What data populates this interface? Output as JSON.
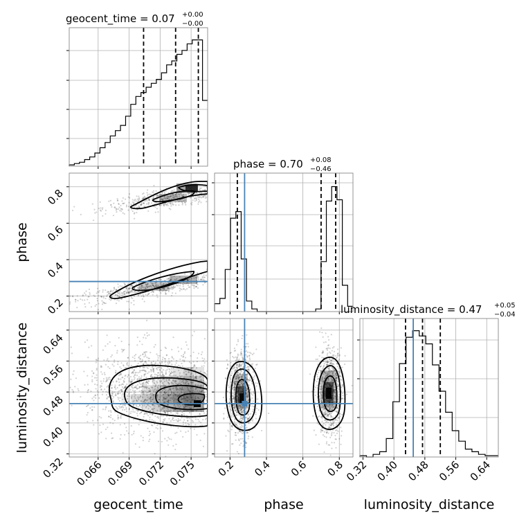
{
  "chart_data": {
    "type": "corner",
    "parameters": [
      "geocent_time",
      "phase",
      "luminosity_distance"
    ],
    "titles": {
      "geocent_time": {
        "name": "geocent_time",
        "median": "0.07",
        "plus": "+0.00",
        "minus": "−0.00"
      },
      "phase": {
        "name": "phase",
        "median": "0.70",
        "plus": "+0.08",
        "minus": "−0.46"
      },
      "luminosity_distance": {
        "name": "luminosity_distance",
        "median": "0.47",
        "plus": "+0.05",
        "minus": "−0.04"
      }
    },
    "axis_labels": {
      "geocent_time": "geocent_time",
      "phase": "phase",
      "luminosity_distance": "luminosity_distance"
    },
    "ranges": {
      "geocent_time": [
        0.0632,
        0.0766
      ],
      "phase": [
        0.115,
        0.875
      ],
      "luminosity_distance": [
        0.312,
        0.67
      ]
    },
    "ticks": {
      "geocent_time": [
        "0.066",
        "0.069",
        "0.072",
        "0.075"
      ],
      "phase_y": [
        "0.2",
        "0.4",
        "0.6",
        "0.8"
      ],
      "phase_x": [
        "0.2",
        "0.4",
        "0.6",
        "0.8"
      ],
      "luminosity_distance": [
        "0.32",
        "0.40",
        "0.48",
        "0.56",
        "0.64"
      ]
    },
    "truth_color": "#4682b4",
    "truths": {
      "phase": 0.28,
      "luminosity_distance": 0.45
    },
    "quantiles": {
      "geocent_time": [
        0.0704,
        0.0735,
        0.0757
      ],
      "phase": [
        0.24,
        0.7,
        0.78
      ],
      "luminosity_distance": [
        0.43,
        0.474,
        0.52
      ]
    },
    "hist_geocent_time": [
      0.01,
      0.02,
      0.03,
      0.05,
      0.07,
      0.1,
      0.14,
      0.18,
      0.23,
      0.27,
      0.31,
      0.38,
      0.47,
      0.53,
      0.56,
      0.6,
      0.63,
      0.66,
      0.71,
      0.77,
      0.8,
      0.85,
      0.88,
      0.93,
      0.96,
      0.96,
      0.5
    ],
    "hist_phase": [
      0.06,
      0.1,
      0.32,
      0.71,
      0.76,
      0.4,
      0.08,
      0.02,
      0,
      0,
      0,
      0,
      0,
      0,
      0,
      0,
      0,
      0,
      0,
      0.02,
      0.38,
      0.84,
      0.95,
      0.85,
      0.2,
      0.04
    ],
    "hist_luminosity_distance": [
      0.01,
      0,
      0.02,
      0.04,
      0.14,
      0.42,
      0.71,
      0.91,
      0.96,
      0.92,
      0.86,
      0.7,
      0.5,
      0.34,
      0.2,
      0.12,
      0.06,
      0.04,
      0.02,
      0.01,
      0.01
    ]
  }
}
